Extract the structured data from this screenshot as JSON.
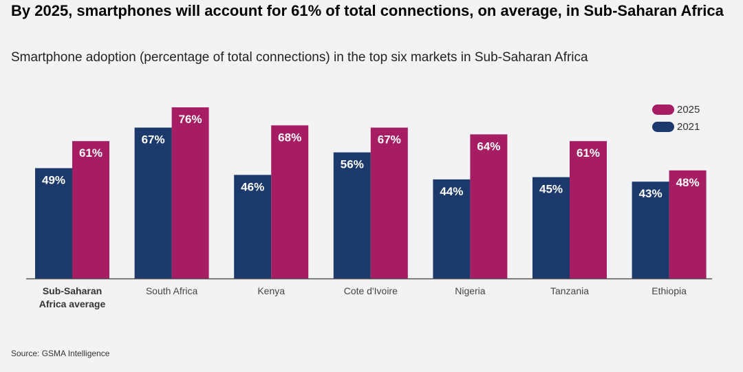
{
  "header": {
    "title": "By 2025, smartphones will account for 61% of total connections, on average, in Sub-Saharan Africa",
    "subtitle": "Smartphone adoption (percentage of total connections) in the top six markets in Sub-Saharan Africa"
  },
  "footer": {
    "source": "Source: GSMA Intelligence"
  },
  "colors": {
    "y2021": "#1b3a6b",
    "y2025": "#a61d64",
    "background": "#f3f3f3"
  },
  "chart_data": {
    "type": "bar",
    "title": "By 2025, smartphones will account for 61% of total connections, on average, in Sub-Saharan Africa",
    "subtitle": "Smartphone adoption (percentage of total connections) in the top six markets in Sub-Saharan Africa",
    "categories": [
      [
        "Sub-Saharan",
        "Africa average"
      ],
      [
        "South Africa"
      ],
      [
        "Kenya"
      ],
      [
        "Cote d'Ivoire"
      ],
      [
        "Nigeria"
      ],
      [
        "Tanzania"
      ],
      [
        "Ethiopia"
      ]
    ],
    "series": [
      {
        "name": "2021",
        "values": [
          49,
          67,
          46,
          56,
          44,
          45,
          43
        ]
      },
      {
        "name": "2025",
        "values": [
          61,
          76,
          68,
          67,
          64,
          61,
          48
        ]
      }
    ],
    "legend": [
      "2025",
      "2021"
    ],
    "data_labels": [
      [
        "49%",
        "67%",
        "46%",
        "56%",
        "44%",
        "45%",
        "43%"
      ],
      [
        "61%",
        "76%",
        "68%",
        "67%",
        "64%",
        "61%",
        "48%"
      ]
    ],
    "ylim": [
      0,
      100
    ],
    "xlabel": "",
    "ylabel": "",
    "grid": false,
    "legend_position": "top-right"
  }
}
